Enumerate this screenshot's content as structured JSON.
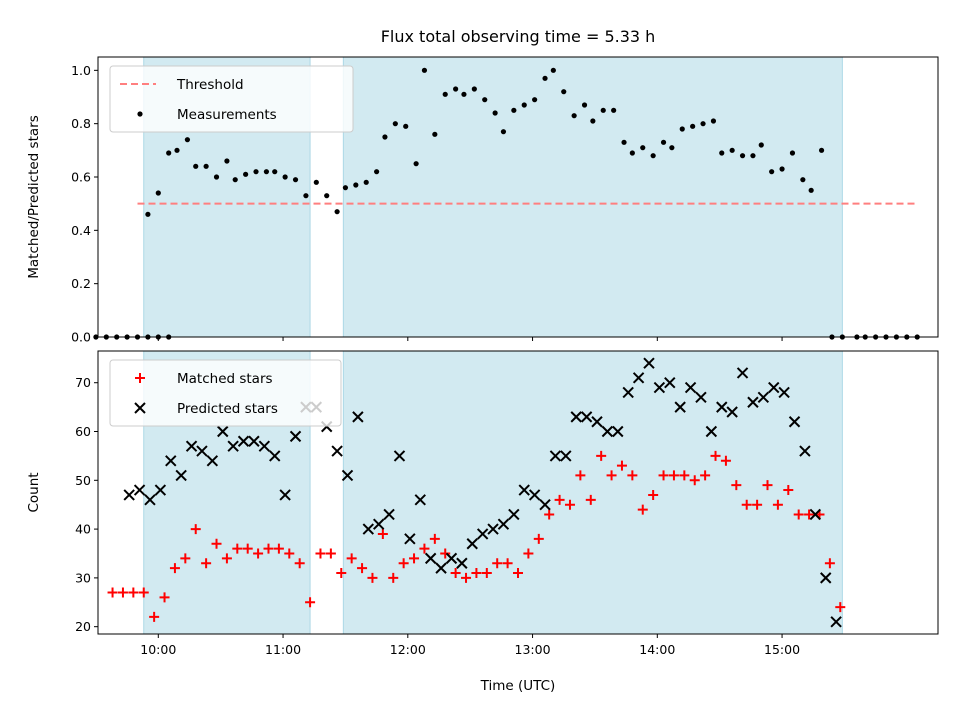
{
  "title": "Flux total observing time = 5.33 h",
  "colors": {
    "shade": "#add8e6",
    "threshold": "#ff7f7f",
    "measurement": "#000000",
    "matched": "#ff0000",
    "predicted": "#000000"
  },
  "chart_data": [
    {
      "type": "scatter",
      "panel": "top",
      "xlabel": "",
      "ylabel": "Matched/Predicted stars",
      "ylim": [
        0,
        1.05
      ],
      "yticks": [
        "0.0",
        "0.2",
        "0.4",
        "0.6",
        "0.8",
        "1.0"
      ],
      "xlim": [
        "09:31",
        "16:15"
      ],
      "threshold": 0.5,
      "threshold_x": [
        "09:50",
        "16:05"
      ],
      "shaded_intervals": [
        [
          "09:53",
          "11:13"
        ],
        [
          "11:29",
          "15:29"
        ]
      ],
      "legend": {
        "position": "upper-left",
        "entries": [
          "Threshold",
          "Measurements"
        ]
      },
      "series": [
        {
          "name": "Measurements",
          "marker": "dot",
          "x": [
            "09:50",
            "09:55",
            "10:00",
            "10:05",
            "09:45",
            "09:40",
            "09:35",
            "09:30",
            "09:55",
            "10:00",
            "10:05",
            "10:09",
            "10:14",
            "10:18",
            "10:23",
            "10:28",
            "10:33",
            "10:37",
            "10:42",
            "10:47",
            "10:52",
            "10:56",
            "11:01",
            "11:06",
            "11:11",
            "11:16",
            "11:21",
            "11:26",
            "11:30",
            "11:35",
            "11:40",
            "11:45",
            "11:49",
            "11:54",
            "11:59",
            "12:04",
            "12:08",
            "12:13",
            "12:18",
            "12:23",
            "12:27",
            "12:32",
            "12:37",
            "12:42",
            "12:46",
            "12:51",
            "12:56",
            "13:01",
            "13:06",
            "13:10",
            "13:15",
            "13:20",
            "13:25",
            "13:29",
            "13:34",
            "13:39",
            "13:44",
            "13:48",
            "13:53",
            "13:58",
            "14:03",
            "14:07",
            "14:12",
            "14:17",
            "14:22",
            "14:27",
            "14:31",
            "14:36",
            "14:41",
            "14:46",
            "14:50",
            "14:55",
            "15:00",
            "15:05",
            "15:10",
            "15:14",
            "15:19",
            "15:24",
            "15:29",
            "15:36",
            "15:40",
            "15:45",
            "15:50",
            "15:55",
            "16:00",
            "16:05"
          ],
          "y": [
            0,
            0,
            0,
            0,
            0,
            0,
            0,
            0,
            0.46,
            0.54,
            0.69,
            0.7,
            0.74,
            0.64,
            0.64,
            0.6,
            0.66,
            0.59,
            0.61,
            0.62,
            0.62,
            0.62,
            0.6,
            0.59,
            0.53,
            0.58,
            0.53,
            0.47,
            0.56,
            0.57,
            0.58,
            0.62,
            0.75,
            0.8,
            0.79,
            0.65,
            1.0,
            0.76,
            0.91,
            0.93,
            0.91,
            0.93,
            0.89,
            0.84,
            0.77,
            0.85,
            0.87,
            0.89,
            0.97,
            1.0,
            0.92,
            0.83,
            0.87,
            0.81,
            0.85,
            0.85,
            0.73,
            0.69,
            0.71,
            0.68,
            0.73,
            0.71,
            0.78,
            0.79,
            0.8,
            0.81,
            0.69,
            0.7,
            0.68,
            0.68,
            0.72,
            0.62,
            0.63,
            0.69,
            0.59,
            0.55,
            0.7,
            0.0,
            0.0,
            0.0,
            0.0,
            0.0,
            0.0,
            0.0,
            0.0,
            0.0
          ]
        }
      ]
    },
    {
      "type": "scatter",
      "panel": "bottom",
      "xlabel": "Time (UTC)",
      "ylabel": "Count",
      "ylim": [
        18.5,
        76.5
      ],
      "yticks": [
        "20",
        "30",
        "40",
        "50",
        "60",
        "70"
      ],
      "xlim": [
        "09:31",
        "16:15"
      ],
      "xticks": [
        "10:00",
        "11:00",
        "12:00",
        "13:00",
        "14:00",
        "15:00"
      ],
      "shaded_intervals": [
        [
          "09:53",
          "11:13"
        ],
        [
          "11:29",
          "15:29"
        ]
      ],
      "legend": {
        "position": "upper-left",
        "entries": [
          "Matched stars",
          "Predicted stars"
        ]
      },
      "series": [
        {
          "name": "Matched stars",
          "marker": "plus",
          "x": [
            "09:38",
            "09:43",
            "09:48",
            "09:53",
            "09:58",
            "10:03",
            "10:08",
            "10:13",
            "10:18",
            "10:23",
            "10:28",
            "10:33",
            "10:38",
            "10:43",
            "10:48",
            "10:53",
            "10:58",
            "11:03",
            "11:08",
            "11:13",
            "11:18",
            "11:23",
            "11:28",
            "11:33",
            "11:38",
            "11:43",
            "11:48",
            "11:53",
            "11:58",
            "12:03",
            "12:08",
            "12:13",
            "12:18",
            "12:23",
            "12:28",
            "12:33",
            "12:38",
            "12:43",
            "12:48",
            "12:53",
            "12:58",
            "13:03",
            "13:08",
            "13:13",
            "13:18",
            "13:23",
            "13:28",
            "13:33",
            "13:38",
            "13:43",
            "13:48",
            "13:53",
            "13:58",
            "14:03",
            "14:08",
            "14:13",
            "14:18",
            "14:23",
            "14:28",
            "14:33",
            "14:38",
            "14:43",
            "14:48",
            "14:53",
            "14:58",
            "15:03",
            "15:08",
            "15:13",
            "15:18",
            "15:23",
            "15:28"
          ],
          "y": [
            27,
            27,
            27,
            27,
            22,
            26,
            32,
            34,
            40,
            33,
            37,
            34,
            36,
            36,
            35,
            36,
            36,
            35,
            33,
            25,
            35,
            35,
            31,
            34,
            32,
            30,
            39,
            30,
            33,
            34,
            36,
            38,
            35,
            31,
            30,
            31,
            31,
            33,
            33,
            31,
            35,
            38,
            43,
            46,
            45,
            51,
            46,
            55,
            51,
            53,
            51,
            44,
            47,
            51,
            51,
            51,
            50,
            51,
            55,
            54,
            49,
            45,
            45,
            49,
            45,
            48,
            43,
            43,
            43,
            33,
            24
          ]
        },
        {
          "name": "Predicted stars",
          "marker": "x",
          "x": [
            "09:46",
            "09:51",
            "09:56",
            "10:01",
            "10:06",
            "10:11",
            "10:16",
            "10:21",
            "10:26",
            "10:31",
            "10:36",
            "10:41",
            "10:46",
            "10:51",
            "10:56",
            "11:01",
            "11:06",
            "11:11",
            "11:16",
            "11:21",
            "11:26",
            "11:31",
            "11:36",
            "11:41",
            "11:46",
            "11:51",
            "11:56",
            "12:01",
            "12:06",
            "12:11",
            "12:16",
            "12:21",
            "12:26",
            "12:31",
            "12:36",
            "12:41",
            "12:46",
            "12:51",
            "12:56",
            "13:01",
            "13:06",
            "13:11",
            "13:16",
            "13:21",
            "13:26",
            "13:31",
            "13:36",
            "13:41",
            "13:46",
            "13:51",
            "13:56",
            "14:01",
            "14:06",
            "14:11",
            "14:16",
            "14:21",
            "14:26",
            "14:31",
            "14:36",
            "14:41",
            "14:46",
            "14:51",
            "14:56",
            "15:01",
            "15:06",
            "15:11",
            "15:16",
            "15:21",
            "15:26"
          ],
          "y": [
            47,
            48,
            46,
            48,
            54,
            51,
            57,
            56,
            54,
            60,
            57,
            58,
            58,
            57,
            55,
            47,
            59,
            65,
            65,
            61,
            56,
            51,
            63,
            40,
            41,
            43,
            55,
            38,
            46,
            34,
            32,
            34,
            33,
            37,
            39,
            40,
            41,
            43,
            48,
            47,
            45,
            55,
            55,
            63,
            63,
            62,
            60,
            60,
            68,
            71,
            74,
            69,
            70,
            65,
            69,
            67,
            60,
            65,
            64,
            72,
            66,
            67,
            69,
            68,
            62,
            56,
            43,
            30,
            21
          ]
        }
      ]
    }
  ]
}
